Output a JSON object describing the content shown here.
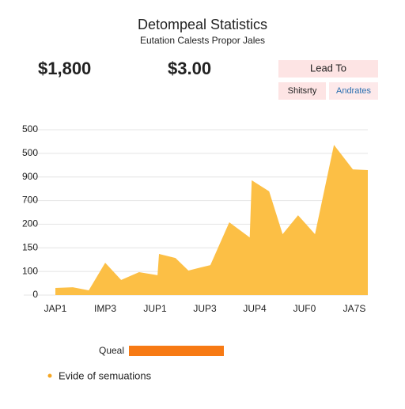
{
  "header": {
    "title": "Detompeal Statistics",
    "subtitle": "Eutation Calests Propor Jales"
  },
  "stats": [
    "$1,800",
    "$3.00"
  ],
  "buttons": [
    "Lead To",
    "Shitsrty",
    "Andrates"
  ],
  "chart_data": {
    "type": "area",
    "color": "#fcbf45",
    "grid": true,
    "x": [
      0,
      0.35,
      0.67,
      1,
      1.32,
      1.68,
      2.05,
      2.08,
      2.41,
      2.67,
      3.11,
      3.49,
      3.9,
      3.94,
      4.29,
      4.56,
      4.87,
      5.21,
      5.59,
      5.97,
      6.27
    ],
    "values": [
      0.3,
      0.33,
      0.2,
      1.37,
      0.64,
      0.97,
      0.84,
      1.74,
      1.57,
      1.04,
      1.27,
      3.08,
      2.44,
      4.86,
      4.39,
      2.58,
      3.38,
      2.58,
      6.36,
      5.32,
      5.29
    ],
    "xlim": [
      0,
      6.27
    ],
    "xticks": [
      {
        "value": 0,
        "label": "JAP1"
      },
      {
        "value": 1,
        "label": "IMP3"
      },
      {
        "value": 2,
        "label": "JUP1"
      },
      {
        "value": 3,
        "label": "JUP3"
      },
      {
        "value": 4,
        "label": "JUP4"
      },
      {
        "value": 5,
        "label": "JUF0"
      },
      {
        "value": 6,
        "label": "JA7S"
      }
    ],
    "ylim": [
      0,
      7
    ],
    "yticks": [
      0,
      {
        "value": 1,
        "label": "100"
      },
      {
        "value": 2,
        "label": "150"
      },
      {
        "value": 3,
        "label": "200"
      },
      {
        "value": 4,
        "label": "700"
      },
      {
        "value": 5,
        "label": "900"
      },
      {
        "value": 6,
        "label": "500"
      },
      {
        "value": 7,
        "label": "500"
      }
    ]
  },
  "legend": {
    "bar_label": "Queal",
    "note": "Evide of semuations"
  }
}
